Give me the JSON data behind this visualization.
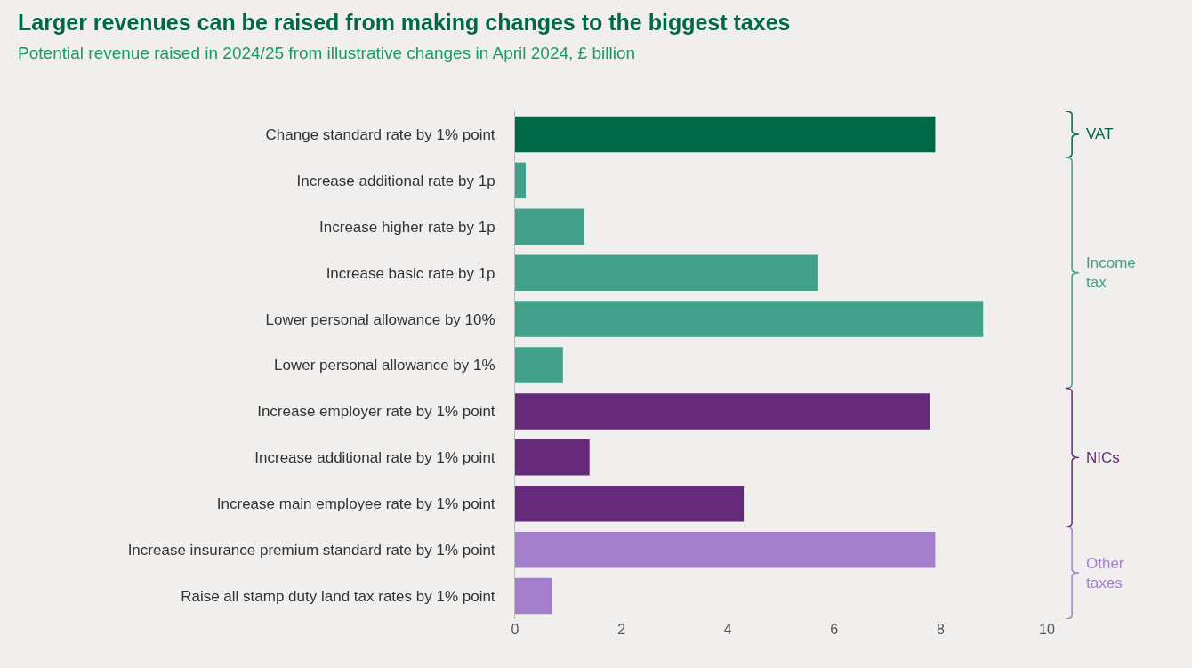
{
  "chart_data": {
    "type": "bar",
    "orientation": "horizontal",
    "title": "Larger revenues can be raised from making changes to the biggest taxes",
    "subtitle": "Potential revenue raised in 2024/25 from illustrative changes in April 2024, £ billion",
    "categories": [
      "Change standard rate by 1% point",
      "Increase additional rate by 1p",
      "Increase higher rate by 1p",
      "Increase basic rate by 1p",
      "Lower personal allowance by 10%",
      "Lower personal allowance by 1%",
      "Increase employer rate by 1% point",
      "Increase additional rate by 1% point",
      "Increase main employee rate by 1% point",
      "Increase insurance premium standard rate by 1% point",
      "Raise all stamp duty land tax rates by 1% point"
    ],
    "values": [
      7.9,
      0.2,
      1.3,
      5.7,
      8.8,
      0.9,
      7.8,
      1.4,
      4.3,
      7.9,
      0.7
    ],
    "colors": [
      "#006747",
      "#40a08a",
      "#40a08a",
      "#40a08a",
      "#40a08a",
      "#40a08a",
      "#652a7a",
      "#652a7a",
      "#652a7a",
      "#a37fcb",
      "#a37fcb"
    ],
    "annotations": [
      "VAT",
      "Income tax",
      "NICs",
      "Other taxes"
    ],
    "xlim": [
      0,
      10
    ],
    "xticks": [
      0,
      2,
      4,
      6,
      8,
      10
    ]
  }
}
